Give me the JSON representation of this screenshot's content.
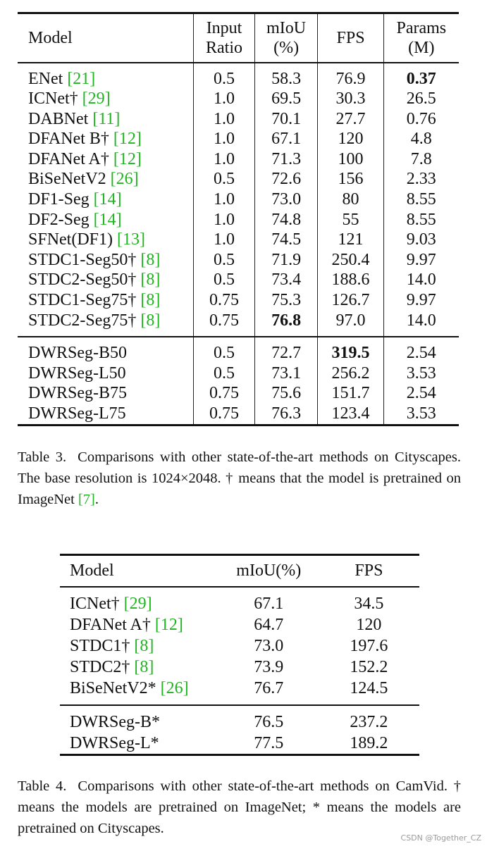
{
  "table3": {
    "headers": {
      "model": "Model",
      "input_ratio_1": "Input",
      "input_ratio_2": "Ratio",
      "miou_1": "mIoU",
      "miou_2": "(%)",
      "fps": "FPS",
      "params_1": "Params",
      "params_2": "(M)"
    },
    "rows": [
      {
        "name": "ENet ",
        "cite": "[21]",
        "ratio": "0.5",
        "miou": "58.3",
        "fps": "76.9",
        "params": "0.37"
      },
      {
        "name": "ICNet† ",
        "cite": "[29]",
        "ratio": "1.0",
        "miou": "69.5",
        "fps": "30.3",
        "params": "26.5"
      },
      {
        "name": "DABNet ",
        "cite": "[11]",
        "ratio": "1.0",
        "miou": "70.1",
        "fps": "27.7",
        "params": "0.76"
      },
      {
        "name": "DFANet B† ",
        "cite": "[12]",
        "ratio": "1.0",
        "miou": "67.1",
        "fps": "120",
        "params": "4.8"
      },
      {
        "name": "DFANet A† ",
        "cite": "[12]",
        "ratio": "1.0",
        "miou": "71.3",
        "fps": "100",
        "params": "7.8"
      },
      {
        "name": "BiSeNetV2 ",
        "cite": "[26]",
        "ratio": "0.5",
        "miou": "72.6",
        "fps": "156",
        "params": "2.33"
      },
      {
        "name": "DF1-Seg ",
        "cite": "[14]",
        "ratio": "1.0",
        "miou": "73.0",
        "fps": "80",
        "params": "8.55"
      },
      {
        "name": "DF2-Seg ",
        "cite": "[14]",
        "ratio": "1.0",
        "miou": "74.8",
        "fps": "55",
        "params": "8.55"
      },
      {
        "name": "SFNet(DF1) ",
        "cite": "[13]",
        "ratio": "1.0",
        "miou": "74.5",
        "fps": "121",
        "params": "9.03"
      },
      {
        "name": "STDC1-Seg50† ",
        "cite": "[8]",
        "ratio": "0.5",
        "miou": "71.9",
        "fps": "250.4",
        "params": "9.97"
      },
      {
        "name": "STDC2-Seg50† ",
        "cite": "[8]",
        "ratio": "0.5",
        "miou": "73.4",
        "fps": "188.6",
        "params": "14.0"
      },
      {
        "name": "STDC1-Seg75† ",
        "cite": "[8]",
        "ratio": "0.75",
        "miou": "75.3",
        "fps": "126.7",
        "params": "9.97"
      },
      {
        "name": "STDC2-Seg75† ",
        "cite": "[8]",
        "ratio": "0.75",
        "miou": "76.8",
        "fps": "97.0",
        "params": "14.0"
      }
    ],
    "ours": [
      {
        "name": "DWRSeg-B50",
        "ratio": "0.5",
        "miou": "72.7",
        "fps": "319.5",
        "params": "2.54"
      },
      {
        "name": "DWRSeg-L50",
        "ratio": "0.5",
        "miou": "73.1",
        "fps": "256.2",
        "params": "3.53"
      },
      {
        "name": "DWRSeg-B75",
        "ratio": "0.75",
        "miou": "75.6",
        "fps": "151.7",
        "params": "2.54"
      },
      {
        "name": "DWRSeg-L75",
        "ratio": "0.75",
        "miou": "76.3",
        "fps": "123.4",
        "params": "3.53"
      }
    ],
    "caption": {
      "label": "Table 3.",
      "text_before": "Comparisons with other state-of-the-art methods on Cityscapes. The base resolution is 1024×2048. † means that the model is pretrained on ImageNet ",
      "cite": "[7]",
      "text_after": "."
    }
  },
  "table4": {
    "headers": {
      "model": "Model",
      "miou": "mIoU(%)",
      "fps": "FPS"
    },
    "rows": [
      {
        "name": "ICNet† ",
        "cite": "[29]",
        "miou": "67.1",
        "fps": "34.5"
      },
      {
        "name": "DFANet A† ",
        "cite": "[12]",
        "miou": "64.7",
        "fps": "120"
      },
      {
        "name": "STDC1† ",
        "cite": "[8]",
        "miou": "73.0",
        "fps": "197.6"
      },
      {
        "name": "STDC2† ",
        "cite": "[8]",
        "miou": "73.9",
        "fps": "152.2"
      },
      {
        "name": "BiSeNetV2* ",
        "cite": "[26]",
        "miou": "76.7",
        "fps": "124.5"
      }
    ],
    "ours": [
      {
        "name": "DWRSeg-B*",
        "miou": "76.5",
        "fps": "237.2"
      },
      {
        "name": "DWRSeg-L*",
        "miou": "77.5",
        "fps": "189.2"
      }
    ],
    "caption": {
      "label": "Table 4.",
      "text": "Comparisons with other state-of-the-art methods on CamVid. † means the models are pretrained on ImageNet; * means the models are pretrained on Cityscapes."
    }
  },
  "watermark": "CSDN @Together_CZ",
  "colors": {
    "citation": "#1fb51f",
    "text": "#111111",
    "watermark": "#9a9a9a"
  }
}
